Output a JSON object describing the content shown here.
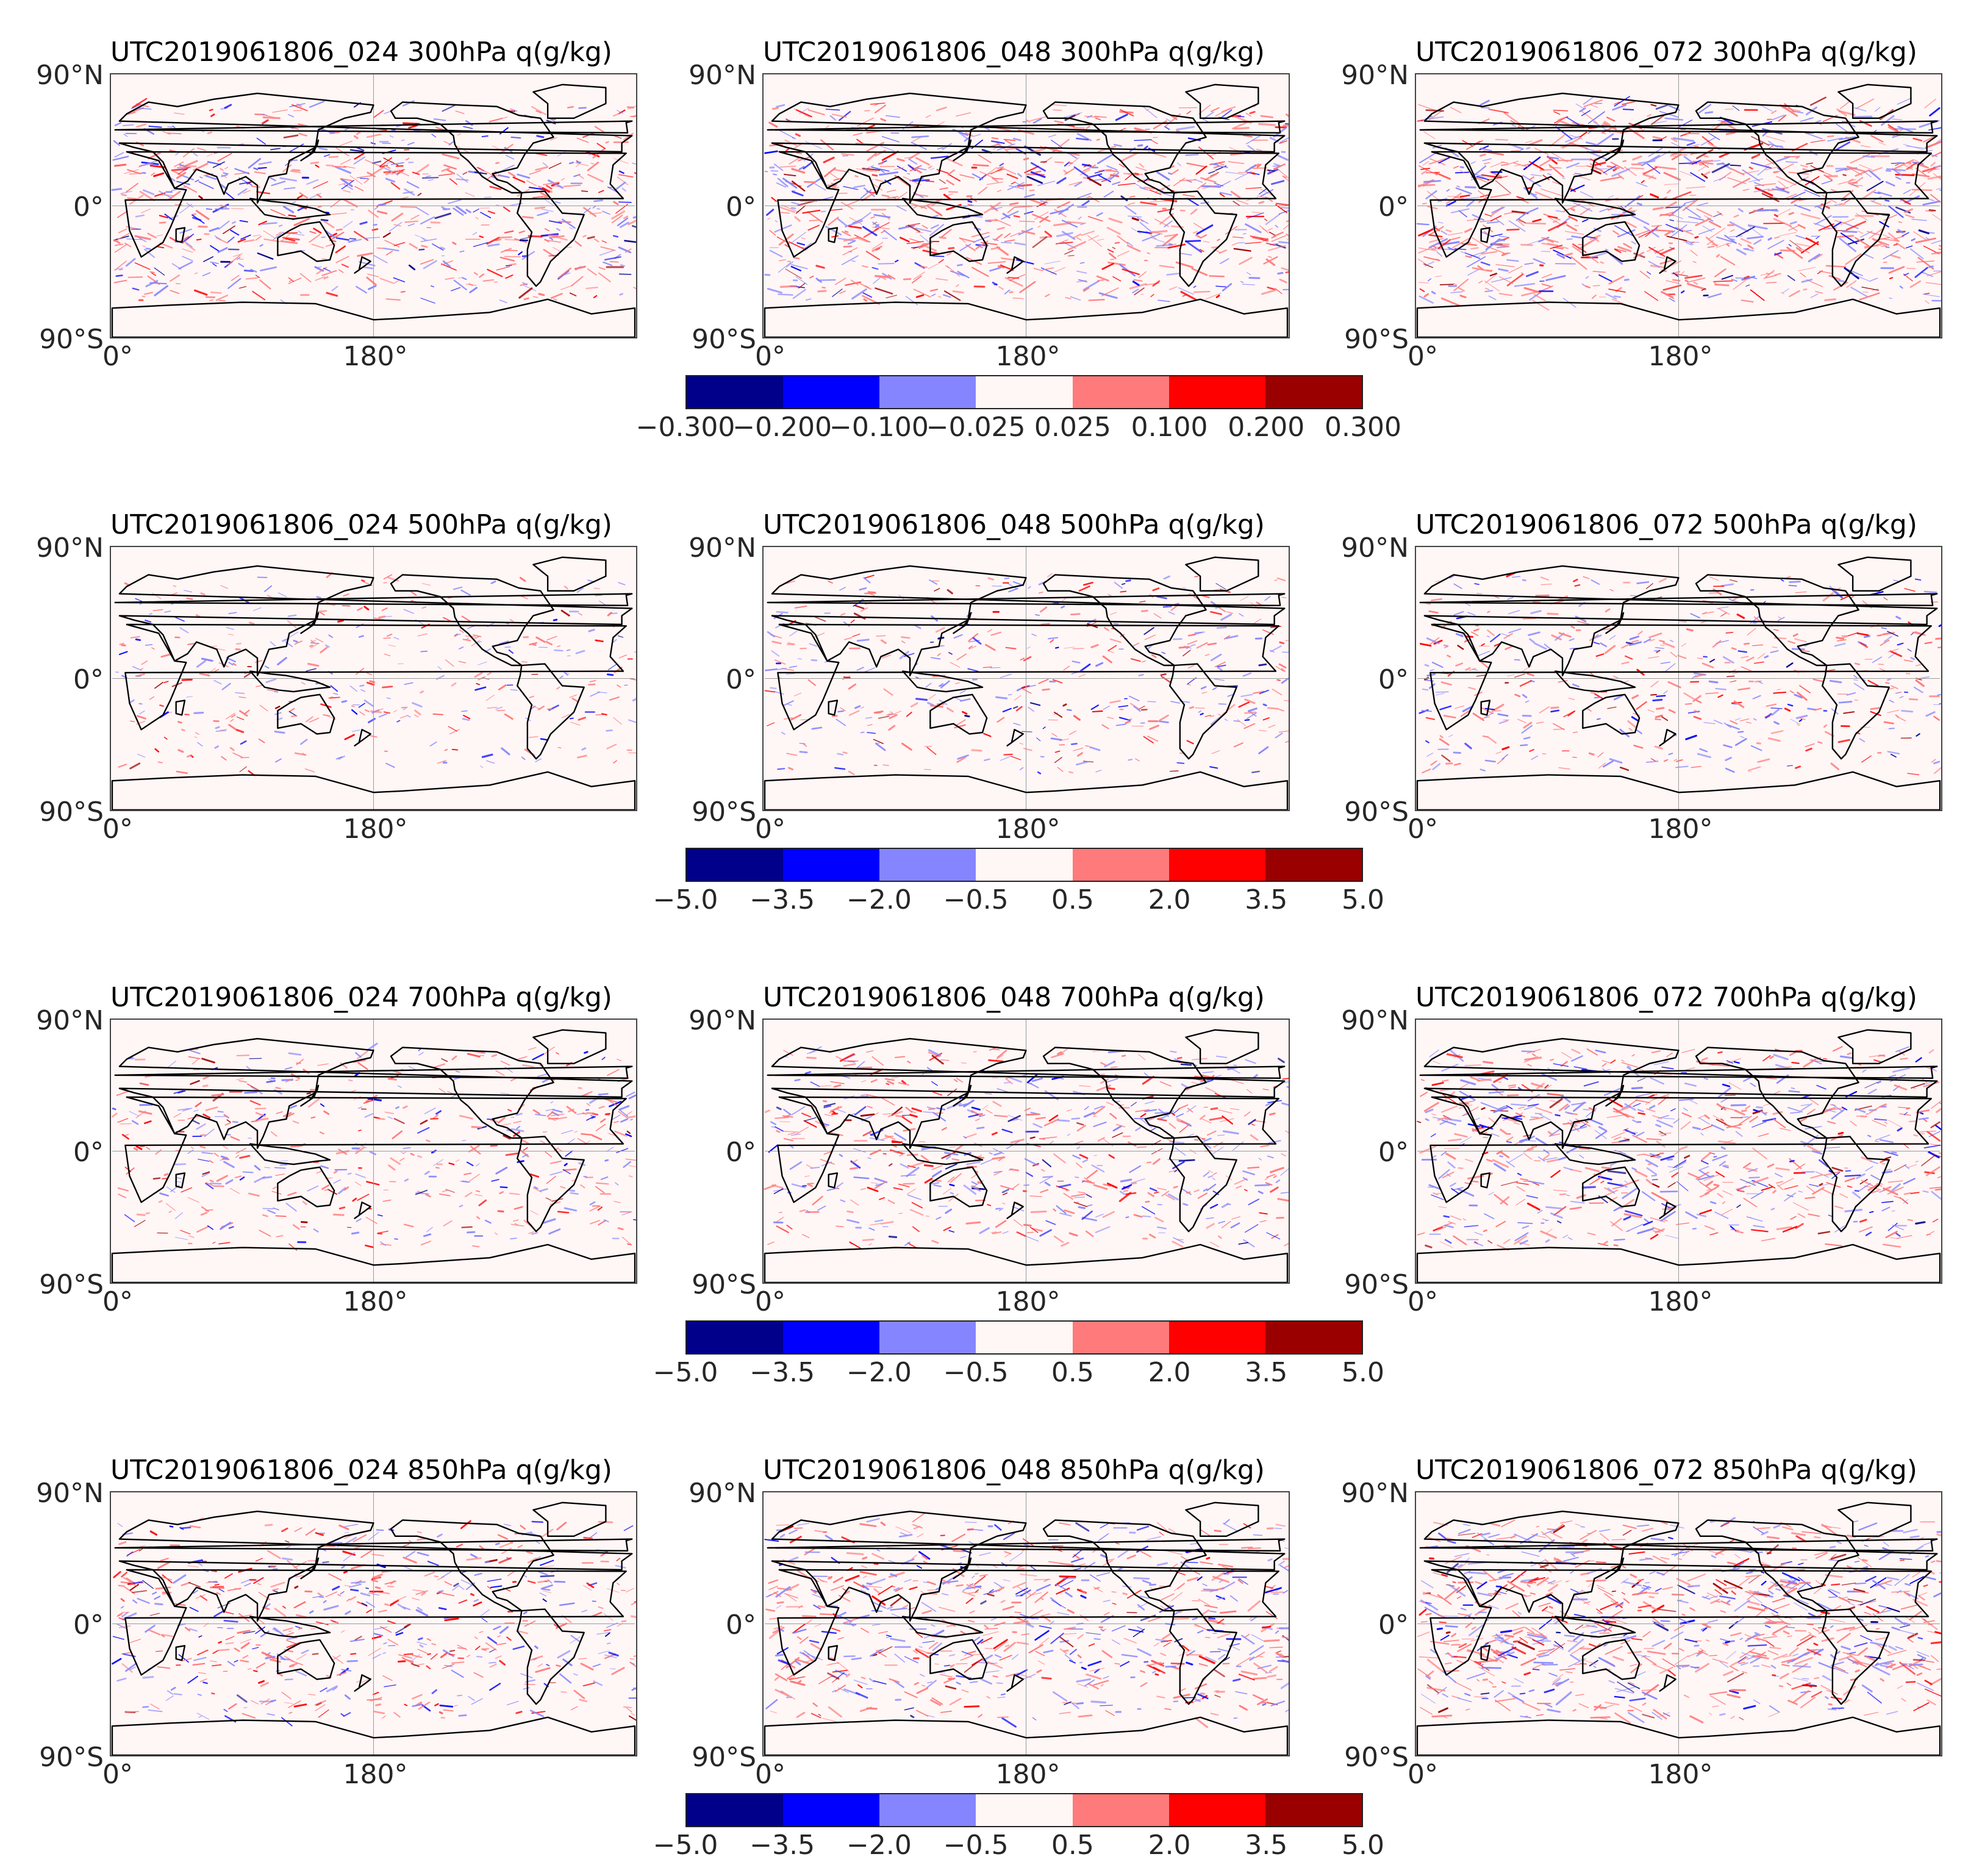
{
  "chart_data": {
    "type": "heatmap",
    "description_units": "q(g/kg)",
    "column_labels": [
      "UTC2019061806_024",
      "UTC2019061806_048",
      "UTC2019061806_072"
    ],
    "axes": {
      "y_ticks": [
        "90°N",
        "0°",
        "90°S"
      ],
      "x_ticks": [
        "0°",
        "180°"
      ],
      "lon_range": [
        0,
        360
      ],
      "lat_range": [
        -90,
        90
      ]
    },
    "rows": [
      {
        "level": "300hPa",
        "titles": [
          "UTC2019061806_024 300hPa q(g/kg)",
          "UTC2019061806_048 300hPa q(g/kg)",
          "UTC2019061806_072 300hPa q(g/kg)"
        ],
        "colorbar_levels": [
          "−0.300",
          "−0.200",
          "−0.100",
          "−0.025",
          "0.025",
          "0.100",
          "0.200",
          "0.300"
        ],
        "intensity": [
          0.55,
          0.7,
          0.85
        ]
      },
      {
        "level": "500hPa",
        "titles": [
          "UTC2019061806_024 500hPa q(g/kg)",
          "UTC2019061806_048 500hPa q(g/kg)",
          "UTC2019061806_072 500hPa q(g/kg)"
        ],
        "colorbar_levels": [
          "−5.0",
          "−3.5",
          "−2.0",
          "−0.5",
          "0.5",
          "2.0",
          "3.5",
          "5.0"
        ],
        "intensity": [
          0.15,
          0.22,
          0.3
        ]
      },
      {
        "level": "700hPa",
        "titles": [
          "UTC2019061806_024 700hPa q(g/kg)",
          "UTC2019061806_048 700hPa q(g/kg)",
          "UTC2019061806_072 700hPa q(g/kg)"
        ],
        "colorbar_levels": [
          "−5.0",
          "−3.5",
          "−2.0",
          "−0.5",
          "0.5",
          "2.0",
          "3.5",
          "5.0"
        ],
        "intensity": [
          0.3,
          0.45,
          0.6
        ]
      },
      {
        "level": "850hPa",
        "titles": [
          "UTC2019061806_024 850hPa q(g/kg)",
          "UTC2019061806_048 850hPa q(g/kg)",
          "UTC2019061806_072 850hPa q(g/kg)"
        ],
        "colorbar_levels": [
          "−5.0",
          "−3.5",
          "−2.0",
          "−0.5",
          "0.5",
          "2.0",
          "3.5",
          "5.0"
        ],
        "intensity": [
          0.4,
          0.55,
          0.75
        ]
      }
    ],
    "colormap": [
      "#00008b",
      "#0000ff",
      "#8585ff",
      "#fff6f6",
      "#ff7a7a",
      "#ff0000",
      "#9b0000"
    ]
  }
}
